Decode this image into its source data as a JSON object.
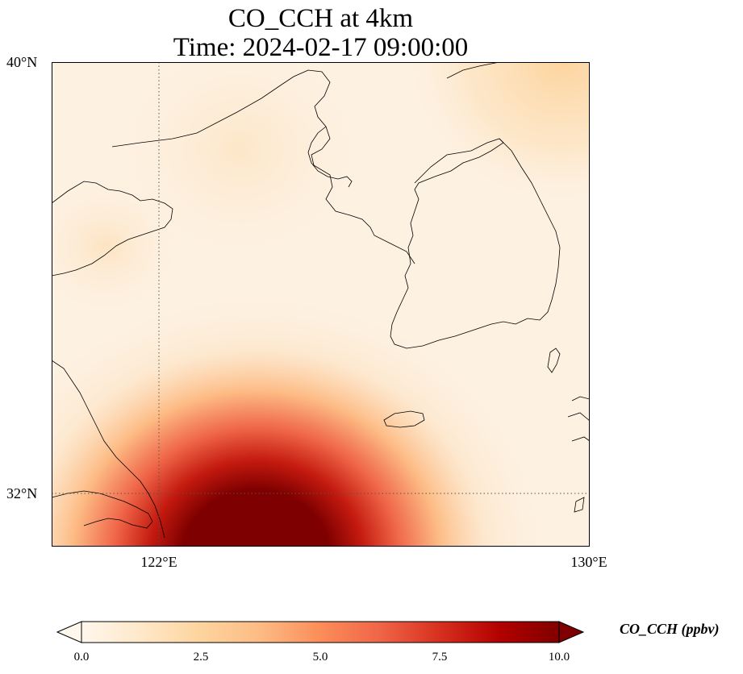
{
  "title": {
    "line1": "CO_CCH at 4km",
    "line2": "Time: 2024-02-17 09:00:00"
  },
  "axes": {
    "lat_labels": [
      "40°N",
      "32°N"
    ],
    "lon_labels": [
      "122°E",
      "130°E"
    ]
  },
  "colorbar": {
    "label": "CO_CCH (ppbv)",
    "ticks": [
      "0.0",
      "2.5",
      "5.0",
      "7.5",
      "10.0"
    ],
    "range": [
      0,
      10
    ],
    "extend": "both",
    "colormap": "OrRd",
    "colors": [
      "#fff7ec",
      "#fee8c8",
      "#fdd49e",
      "#fdbb84",
      "#fc8d59",
      "#ef6548",
      "#d7301f",
      "#b30000",
      "#7f0000"
    ]
  },
  "map": {
    "extent_lon": [
      120,
      130
    ],
    "extent_lat": [
      31,
      40
    ],
    "gridlines": {
      "lon": [
        122
      ],
      "lat": [
        32
      ],
      "style": "dotted"
    },
    "field_description_colors": {
      "background": "#fdf1e1",
      "hotspot": "#7f0000"
    }
  }
}
